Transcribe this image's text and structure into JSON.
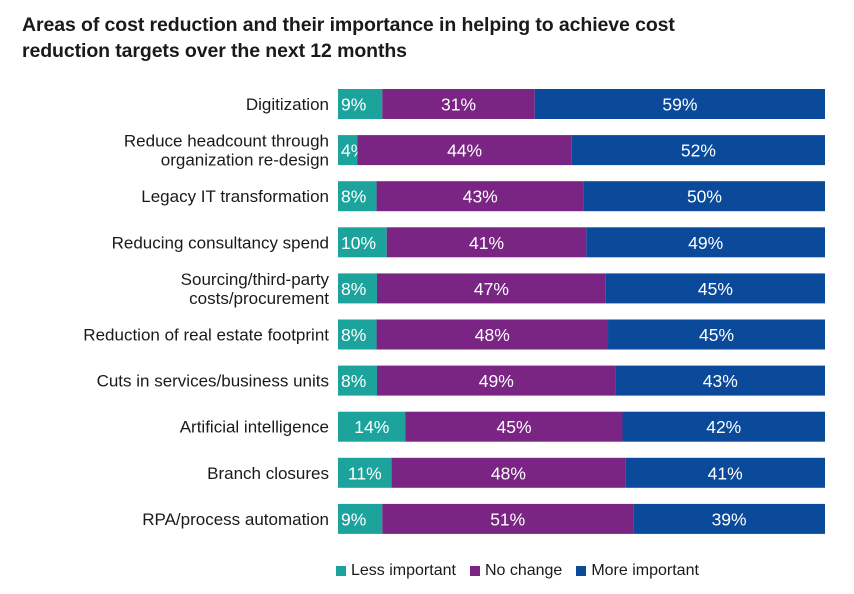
{
  "chart_data": {
    "type": "bar",
    "orientation": "horizontal",
    "stacked": true,
    "title_lines": [
      "Areas of cost reduction and their importance in helping to achieve cost",
      "reduction targets over the next 12 months"
    ],
    "categories": [
      [
        "Digitization"
      ],
      [
        "Reduce headcount through",
        "organization re-design"
      ],
      [
        "Legacy IT transformation"
      ],
      [
        "Reducing consultancy spend"
      ],
      [
        "Sourcing/third-party",
        "costs/procurement"
      ],
      [
        "Reduction of real estate footprint"
      ],
      [
        "Cuts in services/business units"
      ],
      [
        "Artificial intelligence"
      ],
      [
        "Branch closures"
      ],
      [
        "RPA/process automation"
      ]
    ],
    "series": [
      {
        "name": "Less important",
        "color": "#1ba39c",
        "values": [
          9,
          4,
          8,
          10,
          8,
          8,
          8,
          14,
          11,
          9
        ]
      },
      {
        "name": "No change",
        "color": "#7a2583",
        "values": [
          31,
          44,
          43,
          41,
          47,
          48,
          49,
          45,
          48,
          51
        ]
      },
      {
        "name": "More important",
        "color": "#0b4a9a",
        "values": [
          59,
          52,
          50,
          49,
          45,
          45,
          43,
          42,
          41,
          39
        ]
      }
    ],
    "value_suffix": "%",
    "xlim": [
      0,
      100
    ],
    "legend_position": "bottom"
  }
}
